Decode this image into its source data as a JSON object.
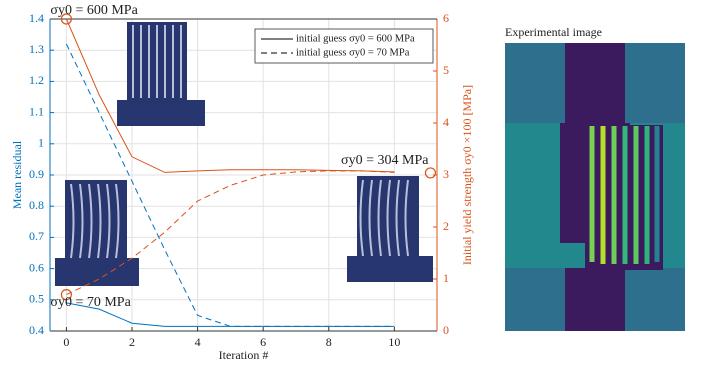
{
  "chart_data": {
    "type": "line",
    "x_label": "Iteration #",
    "y_label": "Mean residual",
    "y2_label": "Initial yield strength σy0 ×100 [MPa]",
    "x": [
      0,
      1,
      2,
      3,
      4,
      5,
      6,
      7,
      8,
      9,
      10
    ],
    "xlim": [
      -0.5,
      11.3
    ],
    "xticks": [
      0,
      2,
      4,
      6,
      8,
      10
    ],
    "ylim": [
      0.4,
      1.4
    ],
    "yticks": [
      0.4,
      0.5,
      0.6,
      0.7,
      0.8,
      0.9,
      1,
      1.1,
      1.2,
      1.3,
      1.4
    ],
    "y2lim": [
      0,
      6
    ],
    "y2ticks": [
      0,
      1,
      2,
      3,
      4,
      5,
      6
    ],
    "grid": true,
    "series": [
      {
        "color": "#0072bd",
        "dash": false,
        "axis": "y",
        "values": [
          0.49,
          0.47,
          0.425,
          0.415,
          0.415,
          0.415,
          0.415,
          0.415,
          0.415,
          0.415,
          0.415
        ]
      },
      {
        "color": "#0072bd",
        "dash": true,
        "axis": "y",
        "values": [
          1.32,
          1.1,
          0.88,
          0.66,
          0.45,
          0.415,
          0.415,
          0.415,
          0.415,
          0.415,
          0.415
        ]
      },
      {
        "color": "#d95319",
        "dash": false,
        "axis": "y2",
        "values": [
          6,
          4.54,
          3.35,
          3.05,
          3.08,
          3.1,
          3.1,
          3.1,
          3.09,
          3.08,
          3.06
        ]
      },
      {
        "color": "#d95319",
        "dash": true,
        "axis": "y2",
        "values": [
          0.7,
          1.0,
          1.4,
          1.9,
          2.5,
          2.8,
          3.0,
          3.06,
          3.08,
          3.08,
          3.05
        ]
      }
    ],
    "legend": [
      {
        "name": "initial guess σy0 = 600 MPa",
        "dash": false
      },
      {
        "name": "initial guess σy0 = 70 MPa",
        "dash": true
      }
    ],
    "highlights": [
      {
        "x": 0,
        "y": 6,
        "label": "σy0 = 600 MPa"
      },
      {
        "x": 0,
        "y": 0.7,
        "label": "σy0 = 70 MPa"
      },
      {
        "x": 11.1,
        "y": 3.04,
        "label": "σy0 = 304 MPa"
      }
    ],
    "highlight_color": "#d95319"
  },
  "image_title": "Experimental image"
}
